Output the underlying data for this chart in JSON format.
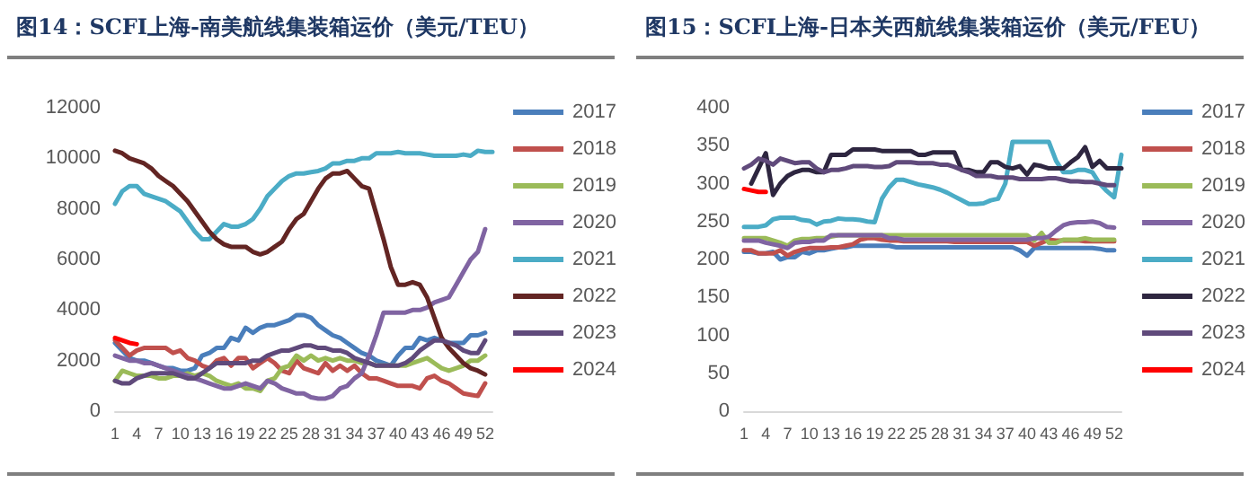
{
  "chart_data": [
    {
      "type": "line",
      "title": "图14：SCFI上海-南美航线集装箱运价（美元/TEU）",
      "categories": [
        "1",
        null,
        null,
        "4",
        null,
        null,
        "7",
        null,
        null,
        "10",
        null,
        null,
        "13",
        null,
        null,
        "16",
        null,
        null,
        "19",
        null,
        null,
        "22",
        null,
        null,
        "25",
        null,
        null,
        "28",
        null,
        null,
        "31",
        null,
        null,
        "34",
        null,
        null,
        "37",
        null,
        null,
        "40",
        null,
        null,
        "43",
        null,
        null,
        "46",
        null,
        null,
        "49",
        null,
        null,
        "52",
        null
      ],
      "ylim": [
        0,
        12000
      ],
      "yticks": [
        0,
        2000,
        4000,
        6000,
        8000,
        10000,
        12000
      ],
      "grid": false,
      "legend": "right",
      "marker": "none",
      "line_style": "solid",
      "series": [
        {
          "name": "2017",
          "color": "#4a7ebb",
          "values": [
            2700,
            2400,
            2100,
            2000,
            2000,
            1900,
            1800,
            1700,
            1700,
            1600,
            1600,
            1700,
            2200,
            2300,
            2500,
            2500,
            2900,
            2800,
            3300,
            3100,
            3300,
            3400,
            3400,
            3500,
            3600,
            3800,
            3800,
            3700,
            3400,
            3200,
            3000,
            2900,
            2700,
            2500,
            2300,
            2200,
            2000,
            1900,
            1800,
            2200,
            2500,
            2500,
            2900,
            2800,
            2900,
            2800,
            2700,
            2700,
            2700,
            3000,
            3000,
            3100,
            null
          ]
        },
        {
          "name": "2018",
          "color": "#c0504d",
          "values": [
            2800,
            2500,
            2200,
            2400,
            2500,
            2500,
            2500,
            2500,
            2300,
            2400,
            2100,
            2000,
            1800,
            1700,
            2000,
            2100,
            1800,
            2100,
            2100,
            1700,
            1900,
            2100,
            1900,
            1600,
            1500,
            2000,
            1700,
            1600,
            1500,
            1900,
            1600,
            1800,
            1600,
            1800,
            1500,
            1300,
            1300,
            1200,
            1100,
            1000,
            1000,
            1000,
            900,
            1300,
            1400,
            1200,
            1100,
            900,
            700,
            650,
            600,
            1100,
            null
          ]
        },
        {
          "name": "2019",
          "color": "#9bbb59",
          "values": [
            1200,
            1600,
            1500,
            1400,
            1400,
            1400,
            1300,
            1300,
            1400,
            1400,
            1500,
            1400,
            1500,
            1400,
            1200,
            1100,
            1000,
            1100,
            900,
            900,
            800,
            1200,
            1300,
            1700,
            1800,
            2200,
            2000,
            2200,
            2000,
            2100,
            2000,
            2100,
            2000,
            2000,
            1900,
            1900,
            1800,
            1800,
            1800,
            1800,
            1800,
            1900,
            2000,
            2100,
            1900,
            1700,
            1600,
            1700,
            1800,
            2000,
            2000,
            2200,
            null
          ]
        },
        {
          "name": "2020",
          "color": "#8064a2",
          "values": [
            2200,
            2100,
            2000,
            2000,
            1900,
            1900,
            1800,
            1700,
            1600,
            1500,
            1400,
            1300,
            1200,
            1100,
            1000,
            900,
            900,
            1000,
            1100,
            1000,
            900,
            1200,
            1100,
            900,
            800,
            700,
            700,
            550,
            500,
            500,
            600,
            900,
            1000,
            1300,
            1500,
            2200,
            3000,
            3900,
            3900,
            3900,
            3900,
            4000,
            4000,
            4100,
            4300,
            4400,
            4500,
            5000,
            5500,
            6000,
            6300,
            7200,
            null
          ]
        },
        {
          "name": "2021",
          "color": "#4bacc6",
          "values": [
            8200,
            8700,
            8900,
            8900,
            8600,
            8500,
            8400,
            8300,
            8100,
            7900,
            7500,
            7100,
            6800,
            6800,
            7100,
            7400,
            7300,
            7300,
            7400,
            7600,
            8000,
            8500,
            8800,
            9100,
            9300,
            9400,
            9400,
            9450,
            9500,
            9600,
            9800,
            9800,
            9900,
            9900,
            10000,
            10000,
            10200,
            10200,
            10200,
            10250,
            10200,
            10200,
            10200,
            10150,
            10100,
            10100,
            10100,
            10100,
            10150,
            10100,
            10300,
            10250,
            10250
          ]
        },
        {
          "name": "2022",
          "color": "#632523",
          "values": [
            10300,
            10200,
            10000,
            9900,
            9800,
            9600,
            9300,
            9100,
            8900,
            8600,
            8300,
            7900,
            7500,
            7100,
            6800,
            6600,
            6500,
            6500,
            6500,
            6300,
            6200,
            6300,
            6500,
            6700,
            7200,
            7600,
            7800,
            8300,
            8800,
            9200,
            9400,
            9400,
            9500,
            9200,
            8900,
            8800,
            7800,
            6800,
            5700,
            5000,
            5000,
            5100,
            5000,
            4500,
            3700,
            2900,
            2500,
            2200,
            1900,
            1700,
            1600,
            1450,
            null
          ]
        },
        {
          "name": "2023",
          "color": "#604a7b",
          "values": [
            1200,
            1100,
            1100,
            1300,
            1400,
            1500,
            1500,
            1500,
            1500,
            1400,
            1300,
            1300,
            1500,
            1700,
            1900,
            1900,
            1900,
            1900,
            1900,
            2000,
            2000,
            2200,
            2300,
            2400,
            2400,
            2500,
            2600,
            2600,
            2500,
            2500,
            2400,
            2400,
            2300,
            2100,
            2000,
            1900,
            1800,
            1800,
            1800,
            1800,
            1900,
            2100,
            2400,
            2600,
            2800,
            2800,
            2700,
            2600,
            2400,
            2300,
            2300,
            2800,
            null
          ]
        },
        {
          "name": "2024",
          "color": "#ff0000",
          "values": [
            2900,
            2800,
            2700,
            2650,
            null,
            null,
            null,
            null,
            null,
            null,
            null,
            null,
            null,
            null,
            null,
            null,
            null,
            null,
            null,
            null,
            null,
            null,
            null,
            null,
            null,
            null,
            null,
            null,
            null,
            null,
            null,
            null,
            null,
            null,
            null,
            null,
            null,
            null,
            null,
            null,
            null,
            null,
            null,
            null,
            null,
            null,
            null,
            null,
            null,
            null,
            null,
            null,
            null
          ]
        }
      ]
    },
    {
      "type": "line",
      "title": "图15：SCFI上海-日本关西航线集装箱运价（美元/FEU）",
      "categories": [
        "1",
        null,
        null,
        "4",
        null,
        null,
        "7",
        null,
        null,
        "10",
        null,
        null,
        "13",
        null,
        null,
        "16",
        null,
        null,
        "19",
        null,
        null,
        "22",
        null,
        null,
        "25",
        null,
        null,
        "28",
        null,
        null,
        "31",
        null,
        null,
        "34",
        null,
        null,
        "37",
        null,
        null,
        "40",
        null,
        null,
        "43",
        null,
        null,
        "46",
        null,
        null,
        "49",
        null,
        null,
        "52",
        null
      ],
      "ylim": [
        0,
        400
      ],
      "yticks": [
        0,
        50,
        100,
        150,
        200,
        250,
        300,
        350,
        400
      ],
      "grid": false,
      "legend": "right",
      "marker": "none",
      "line_style": "solid",
      "series": [
        {
          "name": "2017",
          "color": "#4a7ebb",
          "values": [
            210,
            210,
            208,
            208,
            210,
            200,
            203,
            203,
            210,
            208,
            212,
            212,
            214,
            216,
            216,
            218,
            218,
            218,
            218,
            218,
            218,
            216,
            216,
            216,
            216,
            216,
            216,
            216,
            216,
            216,
            216,
            216,
            216,
            216,
            216,
            216,
            216,
            216,
            212,
            205,
            215,
            215,
            215,
            215,
            215,
            215,
            215,
            215,
            215,
            214,
            212,
            212,
            null
          ]
        },
        {
          "name": "2018",
          "color": "#c0504d",
          "values": [
            212,
            212,
            208,
            208,
            208,
            212,
            205,
            210,
            213,
            215,
            215,
            215,
            216,
            216,
            218,
            220,
            226,
            228,
            228,
            226,
            225,
            225,
            224,
            224,
            224,
            224,
            224,
            224,
            224,
            223,
            223,
            223,
            223,
            223,
            223,
            223,
            223,
            223,
            223,
            223,
            218,
            222,
            226,
            225,
            225,
            225,
            225,
            224,
            224,
            224,
            224,
            224,
            null
          ]
        },
        {
          "name": "2019",
          "color": "#9bbb59",
          "values": [
            228,
            228,
            228,
            228,
            225,
            222,
            218,
            225,
            227,
            227,
            228,
            228,
            230,
            232,
            232,
            232,
            232,
            232,
            232,
            232,
            232,
            232,
            232,
            232,
            232,
            232,
            232,
            232,
            232,
            232,
            232,
            232,
            232,
            232,
            232,
            232,
            232,
            232,
            232,
            232,
            225,
            235,
            222,
            222,
            226,
            226,
            226,
            228,
            226,
            226,
            226,
            226,
            null
          ]
        },
        {
          "name": "2020",
          "color": "#8064a2",
          "values": [
            225,
            225,
            225,
            222,
            220,
            218,
            215,
            222,
            223,
            223,
            225,
            225,
            232,
            232,
            232,
            232,
            232,
            232,
            232,
            232,
            228,
            228,
            226,
            226,
            226,
            226,
            226,
            226,
            226,
            226,
            226,
            226,
            226,
            226,
            226,
            226,
            226,
            226,
            226,
            226,
            228,
            228,
            230,
            238,
            245,
            248,
            249,
            249,
            250,
            248,
            243,
            242,
            null
          ]
        },
        {
          "name": "2021",
          "color": "#4bacc6",
          "values": [
            243,
            243,
            243,
            245,
            253,
            255,
            255,
            255,
            252,
            251,
            246,
            250,
            251,
            254,
            253,
            253,
            252,
            250,
            249,
            280,
            295,
            305,
            305,
            302,
            299,
            297,
            295,
            292,
            288,
            283,
            278,
            273,
            273,
            274,
            278,
            280,
            300,
            355,
            355,
            355,
            355,
            355,
            355,
            330,
            315,
            315,
            318,
            318,
            315,
            300,
            290,
            282,
            338
          ]
        },
        {
          "name": "2022",
          "color": "#2e2640",
          "values": [
            null,
            300,
            320,
            340,
            285,
            300,
            310,
            315,
            318,
            318,
            315,
            315,
            338,
            338,
            338,
            345,
            345,
            345,
            345,
            343,
            343,
            343,
            343,
            343,
            338,
            338,
            341,
            341,
            341,
            341,
            318,
            318,
            315,
            315,
            328,
            328,
            322,
            320,
            323,
            312,
            325,
            323,
            320,
            320,
            320,
            328,
            335,
            348,
            322,
            330,
            320,
            320,
            320
          ]
        },
        {
          "name": "2023",
          "color": "#604a7b",
          "values": [
            320,
            325,
            333,
            330,
            325,
            333,
            330,
            327,
            328,
            328,
            320,
            315,
            318,
            318,
            320,
            323,
            323,
            323,
            322,
            322,
            323,
            328,
            328,
            328,
            327,
            327,
            327,
            325,
            325,
            322,
            318,
            315,
            310,
            310,
            310,
            308,
            308,
            308,
            306,
            306,
            306,
            306,
            307,
            307,
            305,
            303,
            303,
            302,
            302,
            300,
            298,
            298,
            null
          ]
        },
        {
          "name": "2024",
          "color": "#ff0000",
          "values": [
            293,
            291,
            289,
            289,
            null,
            null,
            null,
            null,
            null,
            null,
            null,
            null,
            null,
            null,
            null,
            null,
            null,
            null,
            null,
            null,
            null,
            null,
            null,
            null,
            null,
            null,
            null,
            null,
            null,
            null,
            null,
            null,
            null,
            null,
            null,
            null,
            null,
            null,
            null,
            null,
            null,
            null,
            null,
            null,
            null,
            null,
            null,
            null,
            null,
            null,
            null,
            null,
            null
          ]
        }
      ]
    }
  ]
}
